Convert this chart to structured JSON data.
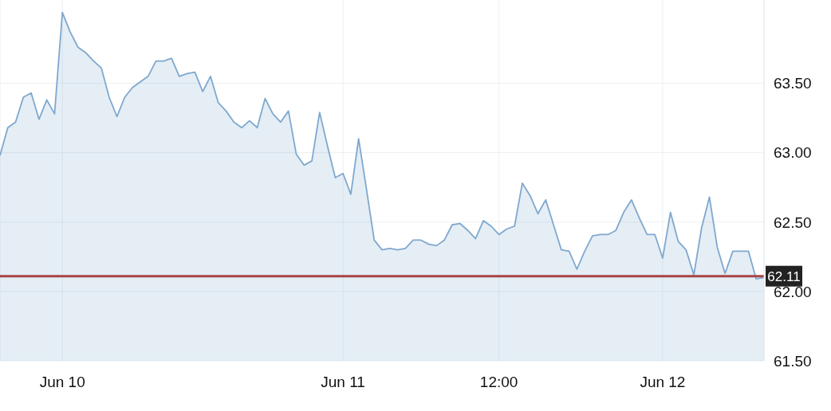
{
  "chart_data": {
    "type": "area",
    "categories": [
      null,
      null,
      null,
      null,
      null,
      null,
      null,
      null,
      "Jun 10",
      null,
      null,
      null,
      null,
      null,
      null,
      null,
      null,
      null,
      null,
      null,
      null,
      null,
      null,
      null,
      null,
      null,
      null,
      null,
      null,
      null,
      null,
      null,
      null,
      null,
      null,
      null,
      null,
      null,
      null,
      null,
      null,
      null,
      null,
      null,
      "Jun 11",
      null,
      null,
      null,
      null,
      null,
      null,
      null,
      null,
      null,
      null,
      null,
      null,
      null,
      null,
      null,
      null,
      null,
      null,
      null,
      "12:00",
      null,
      null,
      null,
      null,
      null,
      null,
      null,
      null,
      null,
      null,
      null,
      null,
      null,
      null,
      null,
      null,
      null,
      null,
      null,
      null,
      "Jun 12",
      null,
      null,
      null,
      null,
      null,
      null,
      null,
      null,
      null,
      null,
      null,
      null,
      null
    ],
    "series": [
      {
        "color": "#7fa8cf",
        "values": [
          62.98,
          63.18,
          63.22,
          63.4,
          63.43,
          63.24,
          63.38,
          63.28,
          64.01,
          63.87,
          63.76,
          63.72,
          63.66,
          63.61,
          63.4,
          63.26,
          63.4,
          63.47,
          63.51,
          63.55,
          63.66,
          63.66,
          63.68,
          63.55,
          63.57,
          63.58,
          63.44,
          63.55,
          63.36,
          63.3,
          63.22,
          63.18,
          63.23,
          63.18,
          63.39,
          63.28,
          63.22,
          63.3,
          62.99,
          62.91,
          62.94,
          63.29,
          63.05,
          62.82,
          62.85,
          62.7,
          63.1,
          62.74,
          62.37,
          62.3,
          62.31,
          62.3,
          62.31,
          62.37,
          62.37,
          62.34,
          62.33,
          62.37,
          62.48,
          62.49,
          62.44,
          62.38,
          62.51,
          62.47,
          62.41,
          62.45,
          62.47,
          62.78,
          62.69,
          62.56,
          62.66,
          62.48,
          62.3,
          62.29,
          62.16,
          62.29,
          62.4,
          62.41,
          62.41,
          62.44,
          62.57,
          62.66,
          62.53,
          62.41,
          62.41,
          62.24,
          62.57,
          62.36,
          62.3,
          62.12,
          62.46,
          62.68,
          62.32,
          62.13,
          62.29,
          62.29,
          62.29,
          62.09,
          62.1
        ]
      }
    ],
    "ylim": [
      61.5,
      64.1
    ],
    "yticks": [
      {
        "value": 61.5,
        "label": "61.50"
      },
      {
        "value": 62,
        "label": "62.00"
      },
      {
        "value": 62.5,
        "label": "62.50"
      },
      {
        "value": 63,
        "label": "63.00"
      },
      {
        "value": 63.5,
        "label": "63.50"
      }
    ],
    "ref_lines": [
      {
        "axis": "y",
        "value": 62.11,
        "label": "62.11",
        "color": "#a84444"
      }
    ],
    "grid": true
  }
}
